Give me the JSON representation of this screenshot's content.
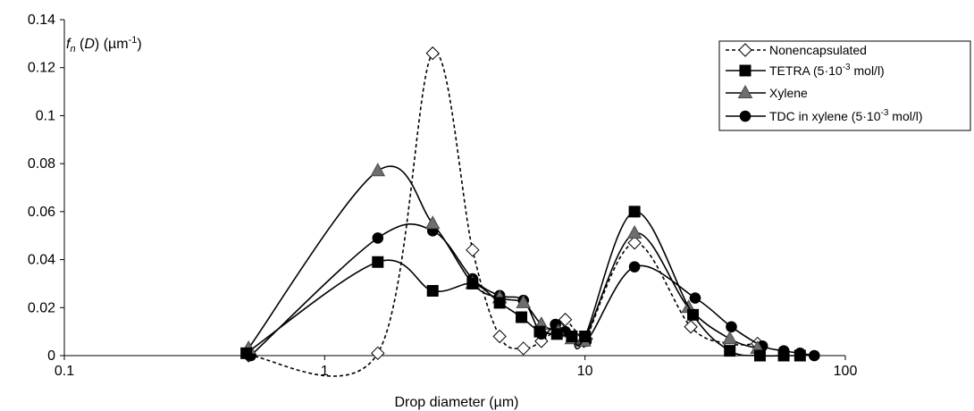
{
  "chart_data": {
    "type": "line",
    "xscale": "log",
    "xlim": [
      0.1,
      100
    ],
    "ylim": [
      0,
      0.14
    ],
    "xticks": [
      "0.1",
      "1",
      "10",
      "100"
    ],
    "yticks": [
      "0",
      "0.02",
      "0.04",
      "0.06",
      "0.08",
      "0.1",
      "0.12",
      "0.14"
    ],
    "xlabel": "Drop diameter (µm)",
    "ylabel": {
      "f": "f",
      "sub": "n",
      "mid": " (",
      "d": "D",
      "post": ") (µm",
      "sup": "-1",
      "end": ")"
    },
    "grid": false,
    "legend_position": "top-right",
    "series": [
      {
        "name": {
          "text": "Nonencapsulated",
          "pre": "",
          "sup": "",
          "post": ""
        },
        "marker": "diamond-open",
        "line": "dashed",
        "x": [
          0.51,
          1.6,
          2.6,
          3.7,
          4.7,
          5.8,
          6.8,
          7.9,
          8.4,
          9.9,
          10.1,
          15.5,
          25.5,
          36,
          46
        ],
        "y": [
          0.0,
          0.001,
          0.126,
          0.044,
          0.008,
          0.003,
          0.006,
          0.012,
          0.015,
          0.006,
          0.007,
          0.047,
          0.012,
          0.005,
          0.005
        ]
      },
      {
        "name": {
          "text": "",
          "pre": "TETRA (5·10",
          "sup": "-3",
          "post": " mol/l)"
        },
        "marker": "square",
        "line": "solid",
        "x": [
          0.5,
          1.6,
          2.6,
          3.7,
          4.7,
          5.7,
          6.7,
          7.8,
          8.9,
          10.0,
          15.5,
          26,
          36,
          47,
          58,
          67
        ],
        "y": [
          0.001,
          0.039,
          0.027,
          0.03,
          0.022,
          0.016,
          0.01,
          0.009,
          0.008,
          0.008,
          0.06,
          0.017,
          0.002,
          0.0,
          0.0,
          0.0
        ]
      },
      {
        "name": {
          "text": "Xylene",
          "pre": "",
          "sup": "",
          "post": ""
        },
        "marker": "triangle",
        "line": "solid",
        "x": [
          0.51,
          1.6,
          2.6,
          3.7,
          4.7,
          5.8,
          6.8,
          7.9,
          8.9,
          9.9,
          15.5,
          25,
          36,
          46
        ],
        "y": [
          0.003,
          0.077,
          0.055,
          0.03,
          0.024,
          0.022,
          0.013,
          0.01,
          0.007,
          0.006,
          0.051,
          0.02,
          0.007,
          0.003
        ]
      },
      {
        "name": {
          "text": "",
          "pre": "TDC in xylene (5·10",
          "sup": "-3",
          "post": " mol/l)"
        },
        "marker": "circle",
        "line": "solid",
        "x": [
          0.52,
          1.6,
          2.6,
          3.7,
          4.7,
          5.8,
          6.8,
          7.7,
          8.4,
          10.1,
          15.5,
          26.5,
          36.5,
          48,
          58,
          67,
          76
        ],
        "y": [
          0.0,
          0.049,
          0.052,
          0.032,
          0.025,
          0.023,
          0.009,
          0.013,
          0.01,
          0.006,
          0.037,
          0.024,
          0.012,
          0.004,
          0.002,
          0.001,
          0.0
        ]
      }
    ]
  }
}
